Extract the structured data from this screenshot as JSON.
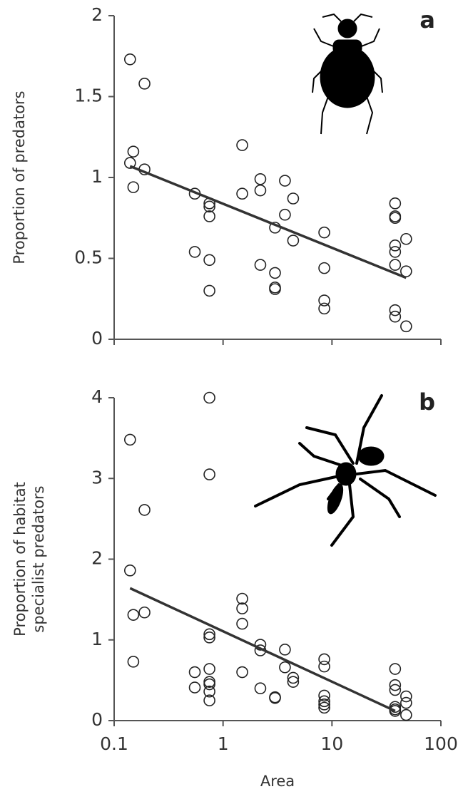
{
  "chart_data": [
    {
      "type": "scatter",
      "panel_label": "a",
      "ylabel": [
        "Proportion of predators"
      ],
      "log_x": true,
      "xlim": [
        0.1,
        100
      ],
      "xticks": [
        0.1,
        1,
        10,
        100
      ],
      "xtick_labels": false,
      "ylim": [
        0,
        2
      ],
      "yticks": [
        0,
        0.5,
        1,
        1.5,
        2
      ],
      "x": [
        0.14,
        0.19,
        0.15,
        0.14,
        0.19,
        0.15,
        0.55,
        0.75,
        0.75,
        0.75,
        0.55,
        0.75,
        0.75,
        1.5,
        1.5,
        2.2,
        2.2,
        3.7,
        3.7,
        4.4,
        3.0,
        4.4,
        2.2,
        3.0,
        3.0,
        3.0,
        8.5,
        8.5,
        8.5,
        8.5,
        38,
        38,
        38,
        38,
        38,
        38,
        48,
        48,
        38,
        38,
        48
      ],
      "values": [
        1.73,
        1.58,
        1.16,
        1.09,
        1.05,
        0.94,
        0.9,
        0.84,
        0.82,
        0.76,
        0.54,
        0.49,
        0.3,
        1.2,
        0.9,
        0.99,
        0.92,
        0.98,
        0.77,
        0.87,
        0.69,
        0.61,
        0.46,
        0.41,
        0.32,
        0.31,
        0.66,
        0.44,
        0.24,
        0.19,
        0.84,
        0.76,
        0.75,
        0.58,
        0.54,
        0.46,
        0.62,
        0.42,
        0.18,
        0.14,
        0.08
      ],
      "trend": {
        "x": [
          0.14,
          48
        ],
        "y": [
          1.07,
          0.38
        ]
      }
    },
    {
      "type": "scatter",
      "panel_label": "b",
      "ylabel": [
        "Proportion of habitat",
        "specialist predators"
      ],
      "xlabel": "Area",
      "log_x": true,
      "xlim": [
        0.1,
        100
      ],
      "xticks": [
        0.1,
        1,
        10,
        100
      ],
      "xtick_labels": true,
      "ylim": [
        0,
        4
      ],
      "yticks": [
        0,
        1,
        2,
        3,
        4
      ],
      "x": [
        0.14,
        0.75,
        0.75,
        0.19,
        0.14,
        0.19,
        0.15,
        0.15,
        0.75,
        0.75,
        0.75,
        0.55,
        0.55,
        0.75,
        0.75,
        0.75,
        0.75,
        1.5,
        1.5,
        1.5,
        1.5,
        2.2,
        2.2,
        2.2,
        3.7,
        3.7,
        4.4,
        4.4,
        3.0,
        3.0,
        8.5,
        8.5,
        8.5,
        8.5,
        8.5,
        8.5,
        38,
        38,
        38,
        38,
        38,
        38,
        48,
        48,
        48
      ],
      "values": [
        3.48,
        4.0,
        3.05,
        2.61,
        1.86,
        1.34,
        1.31,
        0.73,
        1.07,
        1.03,
        0.64,
        0.6,
        0.41,
        0.48,
        0.45,
        0.36,
        0.25,
        1.51,
        1.39,
        1.2,
        0.6,
        0.94,
        0.87,
        0.4,
        0.88,
        0.66,
        0.53,
        0.48,
        0.29,
        0.28,
        0.76,
        0.67,
        0.31,
        0.24,
        0.2,
        0.16,
        0.64,
        0.44,
        0.38,
        0.17,
        0.14,
        0.12,
        0.3,
        0.22,
        0.07
      ],
      "trend": {
        "x": [
          0.14,
          38
        ],
        "y": [
          1.64,
          0.12
        ]
      }
    }
  ]
}
